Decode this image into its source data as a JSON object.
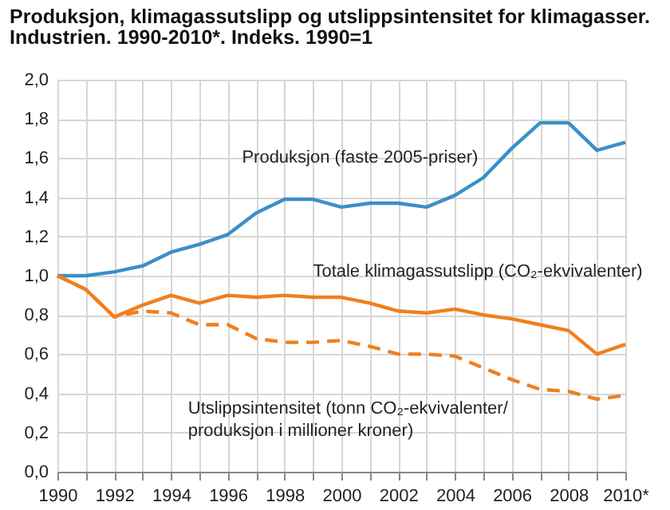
{
  "chart_data": {
    "type": "line",
    "title": "Produksjon, klimagassutslipp og utslippsintensitet for klimagasser. Industrien. 1990-2010*. Indeks. 1990=1",
    "categories": [
      "1990",
      null,
      "1992",
      null,
      "1994",
      null,
      "1996",
      null,
      "1998",
      null,
      "2000",
      null,
      "2002",
      null,
      "2004",
      null,
      "2006",
      null,
      "2008",
      null,
      "2010*"
    ],
    "series": [
      {
        "name": "Produksjon (faste 2005-priser)",
        "color": "#3b8fc7",
        "line_style": "solid",
        "values": [
          1.0,
          1.0,
          1.02,
          1.05,
          1.12,
          1.16,
          1.21,
          1.32,
          1.39,
          1.39,
          1.35,
          1.37,
          1.37,
          1.35,
          1.41,
          1.5,
          1.65,
          1.78,
          1.78,
          1.64,
          1.68
        ]
      },
      {
        "name": "Totale klimagassutslipp (CO₂-ekvivalenter)",
        "color": "#f07f1e",
        "line_style": "solid",
        "values": [
          1.0,
          0.93,
          0.79,
          0.85,
          0.9,
          0.86,
          0.9,
          0.89,
          0.9,
          0.89,
          0.89,
          0.86,
          0.82,
          0.81,
          0.83,
          0.8,
          0.78,
          0.75,
          0.72,
          0.6,
          0.65
        ]
      },
      {
        "name": "Utslippsintensitet (tonn CO₂-ekvivalenter/ produksjon i millioner kroner)",
        "color": "#f07f1e",
        "line_style": "dashed",
        "values": [
          1.0,
          0.93,
          0.79,
          0.82,
          0.81,
          0.75,
          0.75,
          0.68,
          0.66,
          0.66,
          0.67,
          0.64,
          0.6,
          0.6,
          0.59,
          0.53,
          0.47,
          0.42,
          0.41,
          0.37,
          0.39
        ]
      }
    ],
    "ylim": [
      0,
      2
    ],
    "yticks": [
      {
        "value": 0,
        "label": "0,0"
      },
      {
        "value": 0.2,
        "label": "0,2"
      },
      {
        "value": 0.4,
        "label": "0,4"
      },
      {
        "value": 0.6,
        "label": "0,6"
      },
      {
        "value": 0.8,
        "label": "0,8"
      },
      {
        "value": 1,
        "label": "1,0"
      },
      {
        "value": 1.2,
        "label": "1,2"
      },
      {
        "value": 1.4,
        "label": "1,4"
      },
      {
        "value": 1.6,
        "label": "1,6"
      },
      {
        "value": 1.8,
        "label": "1,8"
      },
      {
        "value": 2,
        "label": "2,0"
      }
    ],
    "grid": true,
    "marker": "none"
  }
}
